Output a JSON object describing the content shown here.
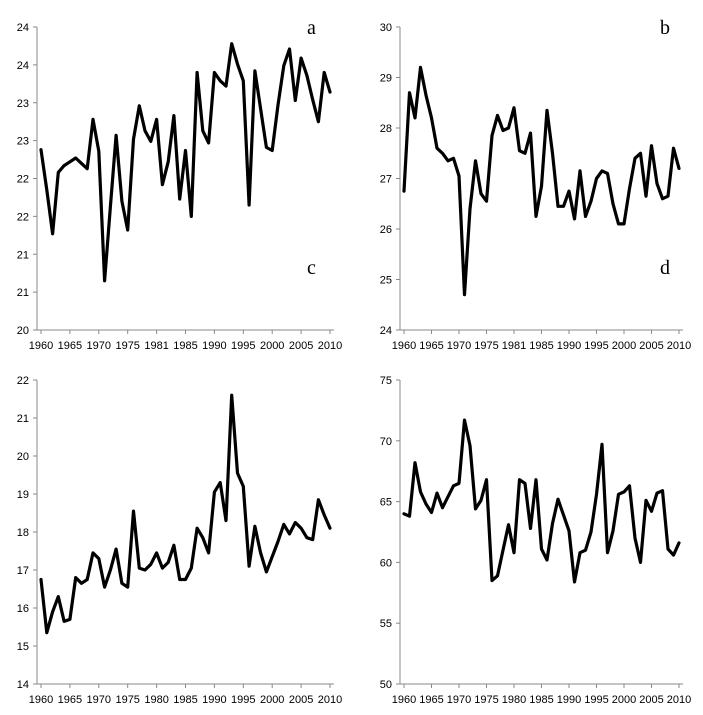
{
  "chart_data": [
    {
      "type": "line",
      "panel_label": "a",
      "ylim": [
        20,
        24
      ],
      "yticks": [
        "20",
        "21",
        "21",
        "22",
        "22",
        "23",
        "23",
        "24",
        "24"
      ],
      "xticks": [
        "1960",
        "1965",
        "1970",
        "1975",
        "1981",
        "1985",
        "1990",
        "1995",
        "2000",
        "2005",
        "2010"
      ],
      "grid": false,
      "x": [
        1960,
        1961,
        1962,
        1963,
        1964,
        1965,
        1966,
        1967,
        1968,
        1969,
        1970,
        1971,
        1972,
        1973,
        1974,
        1975,
        1976,
        1977,
        1978,
        1979,
        1980,
        1981,
        1982,
        1983,
        1984,
        1985,
        1986,
        1987,
        1988,
        1989,
        1990,
        1991,
        1992,
        1993,
        1994,
        1995,
        1996,
        1997,
        1998,
        1999,
        2000,
        2001,
        2002,
        2003,
        2004,
        2005,
        2006,
        2007,
        2008,
        2009,
        2010
      ],
      "values": [
        22.38,
        21.85,
        21.27,
        22.08,
        22.17,
        22.22,
        22.27,
        22.2,
        22.13,
        22.78,
        22.36,
        20.65,
        21.63,
        22.57,
        21.7,
        21.32,
        22.52,
        22.96,
        22.63,
        22.49,
        22.78,
        21.92,
        22.22,
        22.83,
        21.73,
        22.37,
        21.5,
        23.4,
        22.63,
        22.47,
        23.4,
        23.29,
        23.22,
        23.78,
        23.51,
        23.29,
        21.65,
        23.42,
        22.92,
        22.41,
        22.37,
        22.97,
        23.49,
        23.71,
        23.03,
        23.59,
        23.36,
        23.04,
        22.75,
        23.4,
        23.14
      ]
    },
    {
      "type": "line",
      "panel_label": "b",
      "ylim": [
        24,
        30
      ],
      "yticks": [
        "24",
        "25",
        "26",
        "27",
        "28",
        "29",
        "30"
      ],
      "xticks": [
        "1960",
        "1965",
        "1970",
        "1975",
        "1981",
        "1985",
        "1990",
        "1995",
        "2000",
        "2005",
        "2010"
      ],
      "grid": false,
      "x": [
        1960,
        1961,
        1962,
        1963,
        1964,
        1965,
        1966,
        1967,
        1968,
        1969,
        1970,
        1971,
        1972,
        1973,
        1974,
        1975,
        1976,
        1977,
        1978,
        1979,
        1980,
        1981,
        1982,
        1983,
        1984,
        1985,
        1986,
        1987,
        1988,
        1989,
        1990,
        1991,
        1992,
        1993,
        1994,
        1995,
        1996,
        1997,
        1998,
        1999,
        2000,
        2001,
        2002,
        2003,
        2004,
        2005,
        2006,
        2007,
        2008,
        2009,
        2010
      ],
      "values": [
        26.75,
        28.7,
        28.2,
        29.2,
        28.65,
        28.2,
        27.6,
        27.5,
        27.35,
        27.4,
        27.05,
        24.7,
        26.4,
        27.35,
        26.7,
        26.55,
        27.85,
        28.25,
        27.95,
        28.0,
        28.4,
        27.55,
        27.5,
        27.9,
        26.25,
        26.85,
        28.35,
        27.5,
        26.45,
        26.45,
        26.75,
        26.2,
        27.15,
        26.25,
        26.55,
        27.0,
        27.15,
        27.1,
        26.5,
        26.1,
        26.1,
        26.8,
        27.4,
        27.5,
        26.65,
        27.65,
        26.9,
        26.6,
        26.65,
        27.6,
        27.2
      ]
    },
    {
      "type": "line",
      "panel_label": "c",
      "ylim": [
        14,
        22
      ],
      "yticks": [
        "14",
        "15",
        "16",
        "17",
        "18",
        "19",
        "20",
        "21",
        "22"
      ],
      "xticks": [
        "1960",
        "1965",
        "1970",
        "1975",
        "1980",
        "1985",
        "1990",
        "1995",
        "2000",
        "2005",
        "2010"
      ],
      "grid": false,
      "x": [
        1960,
        1961,
        1962,
        1963,
        1964,
        1965,
        1966,
        1967,
        1968,
        1969,
        1970,
        1971,
        1972,
        1973,
        1974,
        1975,
        1976,
        1977,
        1978,
        1979,
        1980,
        1981,
        1982,
        1983,
        1984,
        1985,
        1986,
        1987,
        1988,
        1989,
        1990,
        1991,
        1992,
        1993,
        1994,
        1995,
        1996,
        1997,
        1998,
        1999,
        2000,
        2001,
        2002,
        2003,
        2004,
        2005,
        2006,
        2007,
        2008,
        2009,
        2010
      ],
      "values": [
        16.75,
        15.35,
        15.9,
        16.3,
        15.65,
        15.7,
        16.8,
        16.65,
        16.75,
        17.45,
        17.3,
        16.55,
        17.0,
        17.55,
        16.65,
        16.55,
        18.55,
        17.05,
        17.0,
        17.15,
        17.45,
        17.05,
        17.2,
        17.65,
        16.75,
        16.75,
        17.05,
        18.1,
        17.85,
        17.45,
        19.05,
        19.3,
        18.3,
        21.6,
        19.55,
        19.2,
        17.1,
        18.15,
        17.45,
        16.95,
        17.35,
        17.75,
        18.2,
        17.95,
        18.25,
        18.1,
        17.85,
        17.8,
        18.85,
        18.45,
        18.1
      ]
    },
    {
      "type": "line",
      "panel_label": "d",
      "ylim": [
        50,
        75
      ],
      "yticks": [
        "50",
        "55",
        "60",
        "65",
        "70",
        "75"
      ],
      "xticks": [
        "1960",
        "1965",
        "1970",
        "1975",
        "1980",
        "1985",
        "1990",
        "1995",
        "2000",
        "2005",
        "2010"
      ],
      "grid": false,
      "x": [
        1960,
        1961,
        1962,
        1963,
        1964,
        1965,
        1966,
        1967,
        1968,
        1969,
        1970,
        1971,
        1972,
        1973,
        1974,
        1975,
        1976,
        1977,
        1978,
        1979,
        1980,
        1981,
        1982,
        1983,
        1984,
        1985,
        1986,
        1987,
        1988,
        1989,
        1990,
        1991,
        1992,
        1993,
        1994,
        1995,
        1996,
        1997,
        1998,
        1999,
        2000,
        2001,
        2002,
        2003,
        2004,
        2005,
        2006,
        2007,
        2008,
        2009,
        2010
      ],
      "values": [
        64.0,
        63.8,
        68.2,
        65.8,
        64.8,
        64.1,
        65.7,
        64.5,
        65.4,
        66.3,
        66.5,
        71.7,
        69.6,
        64.4,
        65.1,
        66.8,
        58.5,
        58.9,
        61.0,
        63.1,
        60.8,
        66.8,
        66.5,
        62.8,
        66.8,
        61.1,
        60.2,
        63.2,
        65.2,
        63.9,
        62.6,
        58.4,
        60.8,
        61.0,
        62.5,
        65.6,
        69.7,
        60.8,
        62.6,
        65.6,
        65.8,
        66.3,
        62.0,
        60.0,
        65.1,
        64.2,
        65.7,
        65.9,
        61.1,
        60.6,
        61.6
      ]
    }
  ]
}
